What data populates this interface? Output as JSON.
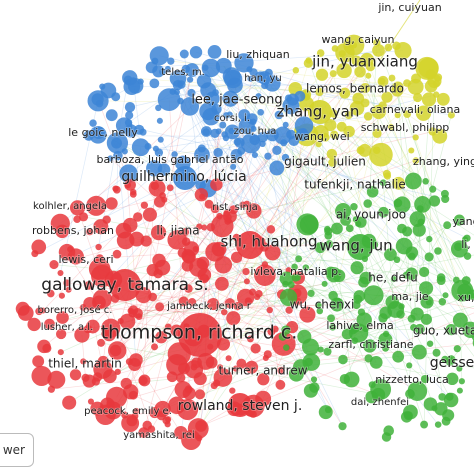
{
  "clusters": [
    {
      "name_color": "#d4d42a",
      "labels": [
        "jin, cuiyuan",
        "wang, caiyun",
        "jin, yuanxiang",
        "lemos, bernardo",
        "zhang, yan",
        "carnevali, oliana",
        "schwabl, philipp",
        "wang, wei",
        "gigault, julien",
        "zhang, ying",
        "tufenkji, nathalie",
        "ivleva, natalia p."
      ]
    },
    {
      "name_color": "#3d85d6",
      "labels": [
        "liu, zhiquan",
        "teles, m.",
        "han, yu",
        "lee, jae-seong",
        "corsi, i.",
        "le goic, nelly",
        "zou, hua",
        "barboza, luis gabriel antão",
        "guilhermino, lúcia",
        "rist, sinja"
      ]
    },
    {
      "name_color": "#e8383d",
      "labels": [
        "kolhler, angela",
        "robbens, johan",
        "li, jiana",
        "shi, huahong",
        "lewis, ceri",
        "galloway, tamara s.",
        "jambeck, jenna r",
        "borerro, josé c.",
        "lusher, a.l.",
        "thompson, richard c.",
        "thiel, martin",
        "turner, andrew",
        "rowland, steven j.",
        "peacock, emily e.",
        "yamashita, rei"
      ]
    },
    {
      "name_color": "#3fb23a",
      "labels": [
        "ai, youn-joo",
        "wang, jun",
        "he, defu",
        "ma, jie",
        "wu, chenxi",
        "lahive, elma",
        "guo, xueta",
        "zarfl, christiane",
        "geisse",
        "nizzetto, luca",
        "dai, zhenfei",
        "yang",
        "li,",
        "xu,"
      ]
    }
  ],
  "ui": {
    "button": "wer"
  }
}
